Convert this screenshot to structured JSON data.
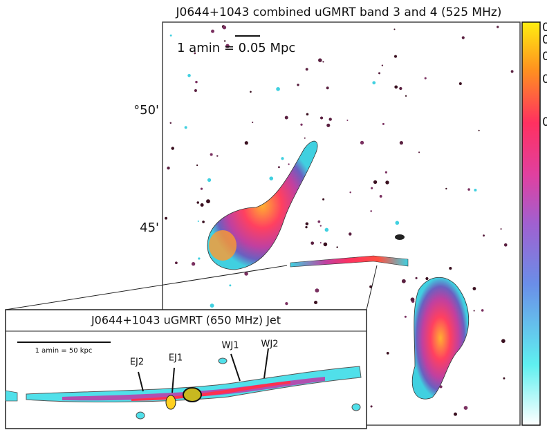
{
  "figure": {
    "title": "J0644+1043 combined uGMRT band 3 and 4 (525 MHz)",
    "y_labels": [
      "°50'",
      "45'"
    ],
    "scale_label": "1 amin = 0.05 Mpc",
    "colorbar_labels": [
      "0",
      "0",
      "0",
      "0",
      "0"
    ],
    "inset": {
      "title": "J0644+1043 uGMRT (650 MHz) Jet",
      "scale_label": "1 amin = 50 kpc",
      "annotations": [
        "EJ2",
        "EJ1",
        "WJ1",
        "WJ2"
      ]
    }
  }
}
